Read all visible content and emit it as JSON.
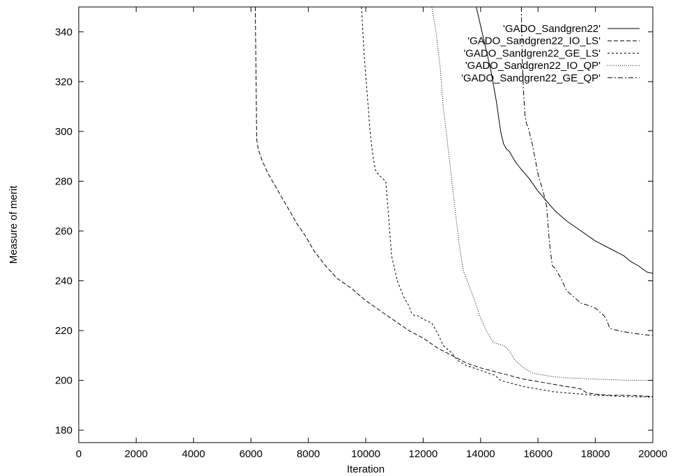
{
  "chart_data": {
    "type": "line",
    "title": "",
    "xlabel": "Iteration",
    "ylabel": "Measure of merit",
    "xlim": [
      0,
      20000
    ],
    "ylim": [
      175,
      350
    ],
    "xticks": [
      0,
      2000,
      4000,
      6000,
      8000,
      10000,
      12000,
      14000,
      16000,
      18000,
      20000
    ],
    "yticks": [
      180,
      200,
      220,
      240,
      260,
      280,
      300,
      320,
      340
    ],
    "grid": false,
    "legend_position": "top-right",
    "series": [
      {
        "name": "'GADO_Sandgren22'",
        "dash": "solid",
        "x": [
          13850,
          14350,
          14550,
          14700,
          14800,
          14900,
          15000,
          15200,
          15400,
          15700,
          16000,
          16300,
          16600,
          17000,
          17500,
          18000,
          18500,
          19000,
          19200,
          19500,
          19800,
          20000
        ],
        "y": [
          350,
          325,
          312,
          300,
          295,
          293,
          292,
          288,
          285,
          281,
          276,
          272,
          268,
          264,
          260,
          256,
          253,
          250,
          248,
          246,
          243.5,
          243
        ]
      },
      {
        "name": "'GADO_Sandgren22_IO_LS'",
        "dash": "6,3",
        "x": [
          6150,
          6170,
          6190,
          6200,
          6250,
          6400,
          6600,
          6800,
          7000,
          7300,
          7600,
          7900,
          8200,
          8600,
          9000,
          9500,
          10000,
          10500,
          11000,
          11500,
          12000,
          12500,
          13000,
          13500,
          14000,
          14500,
          15000,
          15500,
          16000,
          16500,
          17000,
          17300,
          17500,
          17700,
          18000,
          18500,
          19000,
          19500,
          20000
        ],
        "y": [
          350,
          330,
          310,
          297,
          293,
          288,
          283,
          279,
          275,
          269,
          263,
          258,
          252,
          246,
          241,
          237,
          232,
          228,
          224,
          220,
          217,
          213,
          210,
          207,
          205,
          203.5,
          202,
          200.5,
          199.5,
          198.5,
          197.5,
          197,
          196.5,
          195,
          194.5,
          194,
          194,
          193.8,
          193.5
        ]
      },
      {
        "name": "'GADO_Sandgren22_GE_LS'",
        "dash": "3,3",
        "x": [
          9850,
          9950,
          10050,
          10150,
          10250,
          10350,
          10500,
          10700,
          10800,
          10900,
          11100,
          11300,
          11500,
          11600,
          11700,
          11800,
          12100,
          12300,
          12500,
          12700,
          13000,
          13200,
          13500,
          14000,
          14500,
          14700,
          15000,
          15500,
          16000,
          16500,
          17000,
          17500,
          18000,
          18500,
          19000,
          19500,
          20000
        ],
        "y": [
          350,
          330,
          315,
          300,
          290,
          284,
          282,
          280,
          265,
          250,
          240,
          234,
          230,
          227,
          226,
          226,
          224,
          223,
          219,
          214,
          211,
          208,
          206,
          204,
          202,
          200,
          199,
          197.5,
          196.5,
          195.5,
          195,
          194.5,
          194,
          193.8,
          193.5,
          193.4,
          193.3
        ]
      },
      {
        "name": "'GADO_Sandgren22_IO_QP'",
        "dash": "1,2",
        "x": [
          12300,
          12450,
          12600,
          12700,
          12800,
          12900,
          13100,
          13250,
          13400,
          13600,
          13800,
          14000,
          14200,
          14400,
          14500,
          14800,
          15000,
          15200,
          15300,
          15500,
          15800,
          16000,
          16500,
          17000,
          17500,
          18000,
          18500,
          19000,
          19500,
          20000
        ],
        "y": [
          350,
          340,
          325,
          310,
          300,
          290,
          270,
          255,
          244,
          238,
          232,
          225,
          220,
          216,
          215,
          214,
          212,
          208,
          207,
          205,
          203,
          202.5,
          201.5,
          201,
          200.8,
          200.5,
          200.3,
          200.1,
          200,
          200
        ]
      },
      {
        "name": "'GADO_Sandgren22_GE_QP'",
        "dash": "7,3,2,3",
        "x": [
          15420,
          15450,
          15500,
          15550,
          15600,
          15650,
          15800,
          16000,
          16200,
          16300,
          16400,
          16500,
          16600,
          16800,
          17000,
          17200,
          17500,
          17800,
          18000,
          18300,
          18400,
          18500,
          18600,
          18800,
          19000,
          19300,
          19600,
          20000
        ],
        "y": [
          350,
          330,
          315,
          306,
          303,
          302,
          295,
          283,
          275,
          270,
          255,
          246,
          245,
          241,
          236,
          234,
          231,
          230,
          229,
          226,
          224,
          221,
          220.5,
          220,
          219.5,
          219,
          218.5,
          218
        ]
      }
    ]
  }
}
